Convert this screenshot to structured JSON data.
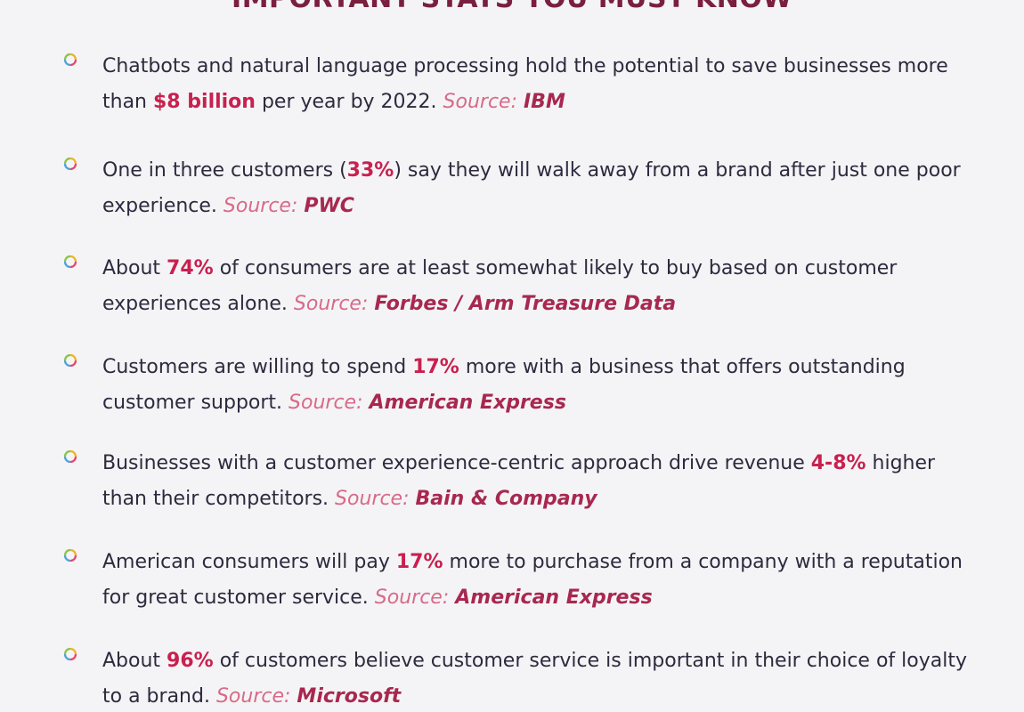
{
  "heading": "IMPORTANT STATS YOU MUST KNOW",
  "source_label": "Source:",
  "colors": {
    "heading": "#7a1f3d",
    "highlight": "#c9204f",
    "source_label": "#d86a88",
    "source_name": "#a8284f",
    "text": "#2e2a3e"
  },
  "bullet_icon": "ring-segment-icon",
  "stats": [
    {
      "before": "Chatbots and natural language processing hold the potential to save businesses more than ",
      "highlight": "$8 billion",
      "after": " per year by 2022. ",
      "source": "IBM"
    },
    {
      "before": "One in three customers (",
      "highlight": "33%",
      "after": ") say they will walk away from a brand after just one poor experience. ",
      "source": "PWC"
    },
    {
      "before": "About ",
      "highlight": "74%",
      "after": " of consumers are at least somewhat likely to buy based on customer experiences alone. ",
      "source": "Forbes / Arm Treasure Data"
    },
    {
      "before": "Customers are willing to spend ",
      "highlight": "17%",
      "after": " more with a business that offers outstanding customer support. ",
      "source": "American Express"
    },
    {
      "before": "Businesses with a customer experience-centric approach drive revenue ",
      "highlight": "4-8%",
      "after": " higher than their competitors. ",
      "source": "Bain & Company"
    },
    {
      "before": "American consumers will pay ",
      "highlight": "17%",
      "after": " more to purchase from a company with a reputation for great customer service. ",
      "source": "American Express"
    },
    {
      "before": "About ",
      "highlight": "96%",
      "after": " of customers believe customer service is important in their choice of loyalty to a brand. ",
      "source": "Microsoft"
    }
  ]
}
